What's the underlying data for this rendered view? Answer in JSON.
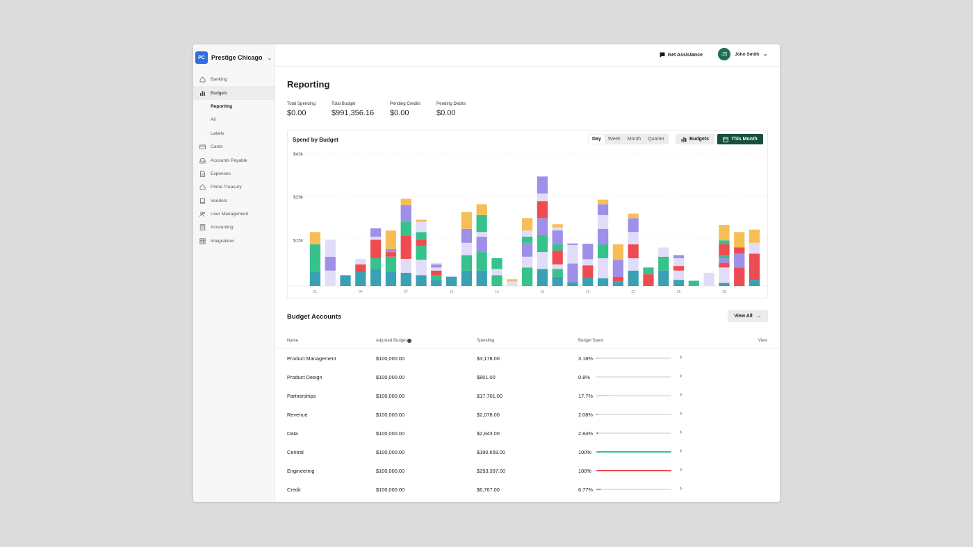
{
  "org": {
    "initials": "PC",
    "name": "Prestige Chicago"
  },
  "sidebar": {
    "items": [
      {
        "label": "Banking",
        "icon": "home-icon"
      },
      {
        "label": "Budgets",
        "icon": "bar-chart-icon",
        "active": true
      },
      {
        "label": "Reporting",
        "sub": true,
        "current": true
      },
      {
        "label": "All",
        "sub": true
      },
      {
        "label": "Labels",
        "sub": true
      },
      {
        "label": "Cards",
        "icon": "card-icon"
      },
      {
        "label": "Accounts Payable",
        "icon": "inbox-icon"
      },
      {
        "label": "Expenses",
        "icon": "document-icon"
      },
      {
        "label": "Prime Treasury",
        "icon": "home-icon"
      },
      {
        "label": "Vendors",
        "icon": "book-icon"
      },
      {
        "label": "User Management",
        "icon": "users-icon"
      },
      {
        "label": "Accounting",
        "icon": "calculator-icon"
      },
      {
        "label": "Integrations",
        "icon": "grid-icon"
      }
    ]
  },
  "topbar": {
    "assistance": "Get Assistance",
    "user_initials": "JS",
    "user_name": "John Smith"
  },
  "page": {
    "title": "Reporting"
  },
  "stats": [
    {
      "label": "Total Spending",
      "value": "$0.00"
    },
    {
      "label": "Total Budget",
      "value": "$991,356.16"
    },
    {
      "label": "Pending Credits",
      "value": "$0.00"
    },
    {
      "label": "Pending Debits",
      "value": "$0.00"
    }
  ],
  "chart_controls": {
    "periods": [
      "Day",
      "Week",
      "Month",
      "Quarter"
    ],
    "selected": "Day",
    "budgets_label": "Budgets",
    "range_label": "This Month"
  },
  "chart_data": {
    "type": "bar",
    "title": "Spend by Budget",
    "stacked": true,
    "y_ticks": [
      "$43k",
      "$29k",
      "$15k"
    ],
    "y_tick_values": [
      43000,
      29000,
      15000
    ],
    "ylim": [
      0,
      43000
    ],
    "x_tick_labels": [
      "01",
      "04",
      "07",
      "10",
      "13",
      "16",
      "19",
      "22",
      "25",
      "28"
    ],
    "x_tick_days": [
      1,
      4,
      7,
      10,
      13,
      16,
      19,
      22,
      25,
      28
    ],
    "grid": true,
    "series_colors": {
      "teal": "#3aa0b4",
      "green": "#36c28a",
      "red": "#ee4c50",
      "lavender": "#e1ddf8",
      "purple": "#9e8fe8",
      "yellow": "#f6be56"
    },
    "bars": [
      {
        "day": 1,
        "segments": [
          [
            "teal",
            4500
          ],
          [
            "green",
            9000
          ],
          [
            "yellow",
            4000
          ]
        ]
      },
      {
        "day": 2,
        "segments": [
          [
            "lavender",
            5000
          ],
          [
            "purple",
            4500
          ],
          [
            "lavender",
            5500
          ]
        ]
      },
      {
        "day": 3,
        "segments": [
          [
            "teal",
            3500
          ]
        ]
      },
      {
        "day": 4,
        "segments": [
          [
            "teal",
            4500
          ],
          [
            "red",
            2500
          ],
          [
            "lavender",
            1800
          ]
        ]
      },
      {
        "day": 5,
        "segments": [
          [
            "teal",
            5500
          ],
          [
            "green",
            3500
          ],
          [
            "red",
            6000
          ],
          [
            "lavender",
            1000
          ],
          [
            "purple",
            2700
          ]
        ]
      },
      {
        "day": 6,
        "segments": [
          [
            "teal",
            4500
          ],
          [
            "green",
            5000
          ],
          [
            "red",
            1500
          ],
          [
            "purple",
            1000
          ],
          [
            "yellow",
            6000
          ]
        ]
      },
      {
        "day": 7,
        "segments": [
          [
            "teal",
            4300
          ],
          [
            "lavender",
            4500
          ],
          [
            "red",
            2000
          ],
          [
            "red",
            5500
          ],
          [
            "green",
            4500
          ],
          [
            "purple",
            5500
          ],
          [
            "yellow",
            2000
          ]
        ]
      },
      {
        "day": 8,
        "segments": [
          [
            "teal",
            3500
          ],
          [
            "lavender",
            5000
          ],
          [
            "green",
            4500
          ],
          [
            "red",
            2000
          ],
          [
            "green",
            2500
          ],
          [
            "lavender",
            3300
          ],
          [
            "yellow",
            700
          ]
        ]
      },
      {
        "day": 9,
        "segments": [
          [
            "teal",
            2000
          ],
          [
            "green",
            1500
          ],
          [
            "red",
            1500
          ],
          [
            "lavender",
            1000
          ],
          [
            "purple",
            1000
          ],
          [
            "lavender",
            500
          ]
        ]
      },
      {
        "day": 10,
        "segments": [
          [
            "teal",
            3000
          ],
          [
            "lavender",
            300
          ]
        ]
      },
      {
        "day": 11,
        "segments": [
          [
            "teal",
            5000
          ],
          [
            "green",
            5000
          ],
          [
            "lavender",
            4000
          ],
          [
            "purple",
            4500
          ],
          [
            "yellow",
            5500
          ]
        ]
      },
      {
        "day": 12,
        "segments": [
          [
            "teal",
            5000
          ],
          [
            "green",
            6000
          ],
          [
            "purple",
            5000
          ],
          [
            "lavender",
            1500
          ],
          [
            "green",
            5500
          ],
          [
            "yellow",
            3500
          ]
        ]
      },
      {
        "day": 13,
        "segments": [
          [
            "green",
            3500
          ],
          [
            "lavender",
            2000
          ],
          [
            "green",
            3500
          ]
        ]
      },
      {
        "day": 14,
        "segments": [
          [
            "lavender",
            1500
          ],
          [
            "yellow",
            700
          ]
        ]
      },
      {
        "day": 15,
        "segments": [
          [
            "green",
            6000
          ],
          [
            "lavender",
            3500
          ],
          [
            "purple",
            4500
          ],
          [
            "green",
            2000
          ],
          [
            "lavender",
            2000
          ],
          [
            "yellow",
            4000
          ]
        ]
      },
      {
        "day": 16,
        "segments": [
          [
            "teal",
            5500
          ],
          [
            "lavender",
            5500
          ],
          [
            "green",
            5500
          ],
          [
            "purple",
            5500
          ],
          [
            "red",
            5500
          ],
          [
            "lavender",
            2500
          ],
          [
            "purple",
            5500
          ]
        ]
      },
      {
        "day": 17,
        "segments": [
          [
            "teal",
            3000
          ],
          [
            "green",
            2500
          ],
          [
            "lavender",
            1500
          ],
          [
            "red",
            4500
          ],
          [
            "green",
            2000
          ],
          [
            "purple",
            4500
          ],
          [
            "lavender",
            1000
          ],
          [
            "yellow",
            1000
          ]
        ]
      },
      {
        "day": 18,
        "segments": [
          [
            "teal",
            1300
          ],
          [
            "purple",
            6000
          ],
          [
            "lavender",
            6000
          ],
          [
            "purple",
            500
          ]
        ]
      },
      {
        "day": 19,
        "segments": [
          [
            "teal",
            2700
          ],
          [
            "red",
            4000
          ],
          [
            "lavender",
            2000
          ],
          [
            "purple",
            5000
          ]
        ]
      },
      {
        "day": 20,
        "segments": [
          [
            "teal",
            2500
          ],
          [
            "lavender",
            6500
          ],
          [
            "green",
            4500
          ],
          [
            "purple",
            5000
          ],
          [
            "lavender",
            4500
          ],
          [
            "purple",
            3500
          ],
          [
            "yellow",
            1500
          ]
        ]
      },
      {
        "day": 21,
        "segments": [
          [
            "teal",
            1500
          ],
          [
            "red",
            1500
          ],
          [
            "purple",
            5500
          ],
          [
            "yellow",
            5000
          ]
        ]
      },
      {
        "day": 22,
        "segments": [
          [
            "teal",
            5000
          ],
          [
            "lavender",
            4000
          ],
          [
            "red",
            4500
          ],
          [
            "lavender",
            4000
          ],
          [
            "purple",
            4500
          ],
          [
            "yellow",
            1500
          ]
        ]
      },
      {
        "day": 23,
        "segments": [
          [
            "red",
            3800
          ],
          [
            "green",
            2200
          ]
        ]
      },
      {
        "day": 24,
        "segments": [
          [
            "teal",
            5000
          ],
          [
            "green",
            4500
          ],
          [
            "lavender",
            3000
          ]
        ]
      },
      {
        "day": 25,
        "segments": [
          [
            "teal",
            2000
          ],
          [
            "lavender",
            3000
          ],
          [
            "red",
            1500
          ],
          [
            "lavender",
            2500
          ],
          [
            "purple",
            1000
          ]
        ]
      },
      {
        "day": 26,
        "segments": [
          [
            "green",
            1700
          ]
        ]
      },
      {
        "day": 27,
        "segments": [
          [
            "lavender",
            4300
          ]
        ]
      },
      {
        "day": 28,
        "segments": [
          [
            "teal",
            1000
          ],
          [
            "lavender",
            5000
          ],
          [
            "red",
            1500
          ],
          [
            "purple",
            1500
          ],
          [
            "green",
            1000
          ],
          [
            "red",
            3500
          ],
          [
            "green",
            1300
          ],
          [
            "yellow",
            5000
          ]
        ]
      },
      {
        "day": 29,
        "segments": [
          [
            "red",
            6000
          ],
          [
            "purple",
            4500
          ],
          [
            "red",
            2000
          ],
          [
            "yellow",
            5000
          ]
        ]
      },
      {
        "day": 30,
        "segments": [
          [
            "teal",
            2000
          ],
          [
            "red",
            8500
          ],
          [
            "lavender",
            3500
          ],
          [
            "yellow",
            4300
          ]
        ]
      }
    ]
  },
  "budget_accounts": {
    "title": "Budget Accounts",
    "view_all": "View All",
    "columns": [
      "Name",
      "Adjusted Budget",
      "Spending",
      "Budget Spent",
      "View"
    ],
    "rows": [
      {
        "name": "Product Management",
        "budget": "$100,000.00",
        "spending": "$3,178.00",
        "pct_label": "3.18%",
        "pct": 3.18,
        "color": "#f6be56"
      },
      {
        "name": "Product Design",
        "budget": "$100,000.00",
        "spending": "$801.00",
        "pct_label": "0.8%",
        "pct": 0.8,
        "color": "#e1ddf8"
      },
      {
        "name": "Partnerships",
        "budget": "$100,000.00",
        "spending": "$17,701.00",
        "pct_label": "17.7%",
        "pct": 17.7,
        "color": "#d9d4f5"
      },
      {
        "name": "Revenue",
        "budget": "$100,000.00",
        "spending": "$2,078.00",
        "pct_label": "2.08%",
        "pct": 2.08,
        "color": "#36c28a"
      },
      {
        "name": "Data",
        "budget": "$100,000.00",
        "spending": "$2,843.00",
        "pct_label": "2.84%",
        "pct": 2.84,
        "color": "#ee4c50"
      },
      {
        "name": "Central",
        "budget": "$100,000.00",
        "spending": "$190,659.00",
        "pct_label": "100%",
        "pct": 100,
        "color": "#36c28a"
      },
      {
        "name": "Engineering",
        "budget": "$100,000.00",
        "spending": "$293,397.00",
        "pct_label": "100%",
        "pct": 100,
        "color": "#ee4c50"
      },
      {
        "name": "Credit",
        "budget": "$100,000.00",
        "spending": "$6,767.00",
        "pct_label": "6.77%",
        "pct": 6.77,
        "color": "#9e8fe8"
      }
    ]
  }
}
